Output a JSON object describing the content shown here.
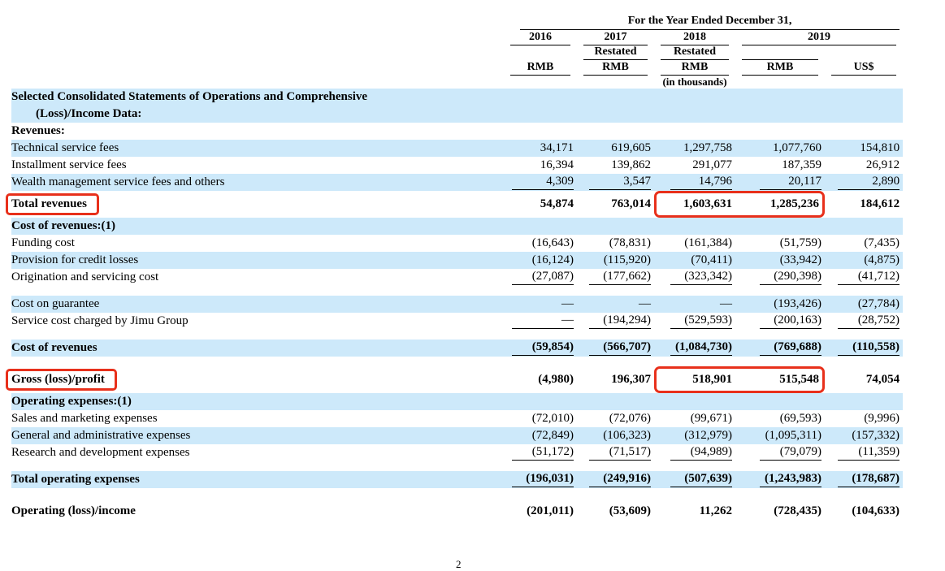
{
  "colors": {
    "row_highlight": "#cde9fa",
    "annotation": "#e8301b"
  },
  "header": {
    "spanner": "For the Year Ended December 31,",
    "years": [
      "2016",
      "2017",
      "2018",
      "2019"
    ],
    "restated": "Restated",
    "units": [
      "RMB",
      "RMB",
      "RMB",
      "RMB",
      "US$"
    ],
    "in_thousands": "(in thousands)"
  },
  "footer": {
    "page_number": "2"
  },
  "rows": [
    {
      "label": "Selected Consolidated Statements of Operations and Comprehensive",
      "values": [
        "",
        "",
        "",
        "",
        ""
      ],
      "shaded": true,
      "bold": true
    },
    {
      "label": "(Loss)/Income Data:",
      "values": [
        "",
        "",
        "",
        "",
        ""
      ],
      "shaded": true,
      "bold": true,
      "indent": true
    },
    {
      "label": "Revenues:",
      "values": [
        "",
        "",
        "",
        "",
        ""
      ],
      "bold": true
    },
    {
      "label": "Technical service fees",
      "values": [
        "34,171",
        "619,605",
        "1,297,758",
        "1,077,760",
        "154,810"
      ],
      "shaded": true
    },
    {
      "label": "Installment service fees",
      "values": [
        "16,394",
        "139,862",
        "291,077",
        "187,359",
        "26,912"
      ]
    },
    {
      "label": "Wealth management service fees and others",
      "values": [
        "4,309",
        "3,547",
        "14,796",
        "20,117",
        "2,890"
      ],
      "shaded": true,
      "underline": true
    },
    {
      "label": "Total revenues",
      "values": [
        "54,874",
        "763,014",
        "1,603,631",
        "1,285,236",
        "184,612"
      ],
      "bold": true,
      "tall": true,
      "annotate_label": true,
      "annotate_cells": true
    },
    {
      "label": "Cost of revenues:(1)",
      "values": [
        "",
        "",
        "",
        "",
        ""
      ],
      "shaded": true,
      "bold": true
    },
    {
      "label": "Funding cost",
      "values": [
        "(16,643)",
        "(78,831)",
        "(161,384)",
        "(51,759)",
        "(7,435)"
      ]
    },
    {
      "label": "Provision for credit losses",
      "values": [
        "(16,124)",
        "(115,920)",
        "(70,411)",
        "(33,942)",
        "(4,875)"
      ],
      "shaded": true
    },
    {
      "label": "Origination and servicing cost",
      "values": [
        "(27,087)",
        "(177,662)",
        "(323,342)",
        "(290,398)",
        "(41,712)"
      ],
      "underline": true
    },
    {
      "spacer": true
    },
    {
      "label": "Cost on guarantee",
      "values": [
        "—",
        "—",
        "—",
        "(193,426)",
        "(27,784)"
      ],
      "shaded": true
    },
    {
      "label": "Service cost charged by Jimu Group",
      "values": [
        "—",
        "(194,294)",
        "(529,593)",
        "(200,163)",
        "(28,752)"
      ],
      "underline": true
    },
    {
      "spacer": true
    },
    {
      "label": "Cost of revenues",
      "values": [
        "(59,854)",
        "(566,707)",
        "(1,084,730)",
        "(769,688)",
        "(110,558)"
      ],
      "shaded": true,
      "bold": true,
      "underline": true
    },
    {
      "spacer": true
    },
    {
      "label": "Gross (loss)/profit",
      "values": [
        "(4,980)",
        "196,307",
        "518,901",
        "515,548",
        "74,054"
      ],
      "bold": true,
      "tall": true,
      "annotate_label": true,
      "annotate_cells": true
    },
    {
      "label": "Operating expenses:(1)",
      "values": [
        "",
        "",
        "",
        "",
        ""
      ],
      "shaded": true,
      "bold": true
    },
    {
      "label": "Sales and marketing expenses",
      "values": [
        "(72,010)",
        "(72,076)",
        "(99,671)",
        "(69,593)",
        "(9,996)"
      ]
    },
    {
      "label": "General and administrative expenses",
      "values": [
        "(72,849)",
        "(106,323)",
        "(312,979)",
        "(1,095,311)",
        "(157,332)"
      ],
      "shaded": true
    },
    {
      "label": "Research and development expenses",
      "values": [
        "(51,172)",
        "(71,517)",
        "(94,989)",
        "(79,079)",
        "(11,359)"
      ],
      "underline": true
    },
    {
      "spacer": true
    },
    {
      "label": "Total operating expenses",
      "values": [
        "(196,031)",
        "(249,916)",
        "(507,639)",
        "(1,243,983)",
        "(178,687)"
      ],
      "shaded": true,
      "bold": true,
      "underline": true
    },
    {
      "spacer": true
    },
    {
      "label": "Operating (loss)/income",
      "values": [
        "(201,011)",
        "(53,609)",
        "11,262",
        "(728,435)",
        "(104,633)"
      ],
      "bold": true,
      "tall": true
    }
  ]
}
